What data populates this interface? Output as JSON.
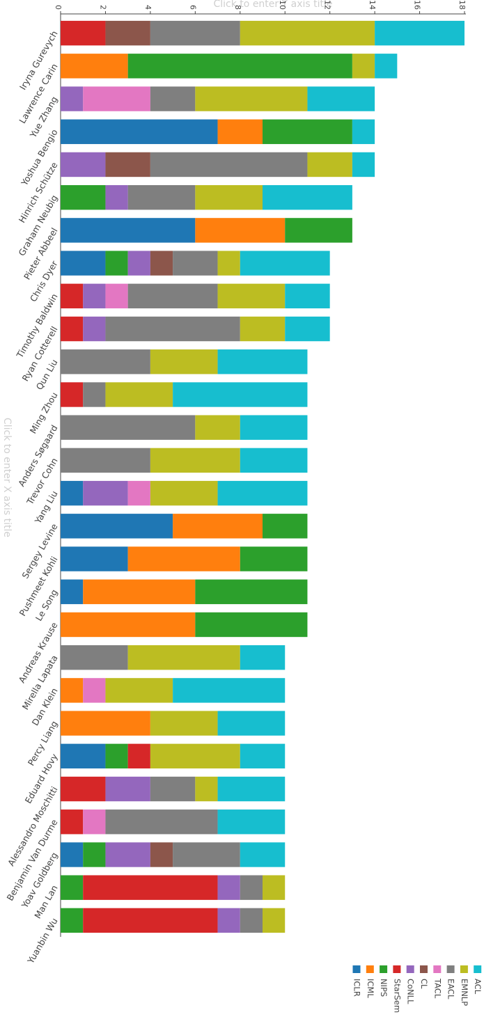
{
  "chart_data": {
    "type": "bar",
    "orientation": "horizontal",
    "stacked": true,
    "title": "",
    "xaxis_title_placeholder": "Click to enter Y axis title",
    "yaxis_title_placeholder": "Click to enter X axis title",
    "xlim": [
      0,
      18
    ],
    "x_ticks": [
      0,
      2,
      4,
      6,
      8,
      10,
      12,
      14,
      16,
      18
    ],
    "x_tick_labels": [
      "0",
      "2",
      "4",
      "6",
      "8",
      "10",
      "12",
      "14",
      "16",
      "18"
    ],
    "grid": false,
    "legend_position": "bottom-right",
    "categories": [
      "Iryna Gurevych",
      "Lawrence Carin",
      "Yue Zhang",
      "Yoshua Bengio",
      "Hinrich Schütze",
      "Graham Neubig",
      "Pieter Abbeel",
      "Chris Dyer",
      "Timothy Baldwin",
      "Ryan Cotterell",
      "Qun Liu",
      "Ming Zhou",
      "Anders Søgaard",
      "Trevor Cohn",
      "Yang Liu",
      "Sergey Levine",
      "Pushmeet Kohli",
      "Le Song",
      "Andreas Krause",
      "Mirella Lapata",
      "Dan Klein",
      "Percy Liang",
      "Eduard Hovy",
      "Alessandro Moschitti",
      "Benjamin Van Durme",
      "Yoav Goldberg",
      "Man Lan",
      "Yuanbin Wu"
    ],
    "series": [
      {
        "name": "ICLR",
        "color": "#1f77b4",
        "values": [
          0,
          0,
          0,
          7,
          0,
          0,
          6,
          2,
          0,
          0,
          0,
          0,
          0,
          0,
          1,
          5,
          3,
          1,
          0,
          0,
          0,
          0,
          2,
          0,
          0,
          1,
          0,
          0
        ]
      },
      {
        "name": "ICML",
        "color": "#ff7f0e",
        "values": [
          0,
          3,
          0,
          2,
          0,
          0,
          4,
          0,
          0,
          0,
          0,
          0,
          0,
          0,
          0,
          4,
          5,
          5,
          6,
          0,
          1,
          4,
          0,
          0,
          0,
          0,
          0,
          0
        ]
      },
      {
        "name": "NIPS",
        "color": "#2ca02c",
        "values": [
          0,
          10,
          0,
          4,
          0,
          2,
          3,
          1,
          0,
          0,
          0,
          0,
          0,
          0,
          0,
          2,
          3,
          5,
          5,
          0,
          0,
          0,
          1,
          0,
          0,
          1,
          1,
          1
        ]
      },
      {
        "name": "StarSem",
        "color": "#d62728",
        "values": [
          2,
          0,
          0,
          0,
          0,
          0,
          0,
          0,
          1,
          1,
          0,
          1,
          0,
          0,
          0,
          0,
          0,
          0,
          0,
          0,
          0,
          0,
          1,
          2,
          1,
          0,
          6,
          6
        ]
      },
      {
        "name": "CoNLL",
        "color": "#9467bd",
        "values": [
          0,
          0,
          1,
          0,
          2,
          1,
          0,
          1,
          1,
          1,
          0,
          0,
          0,
          0,
          2,
          0,
          0,
          0,
          0,
          0,
          0,
          0,
          0,
          2,
          0,
          2,
          1,
          1
        ]
      },
      {
        "name": "CL",
        "color": "#8c564b",
        "values": [
          2,
          0,
          0,
          0,
          2,
          0,
          0,
          1,
          0,
          0,
          0,
          0,
          0,
          0,
          0,
          0,
          0,
          0,
          0,
          0,
          0,
          0,
          0,
          0,
          0,
          1,
          0,
          0
        ]
      },
      {
        "name": "TACL",
        "color": "#e377c2",
        "values": [
          0,
          0,
          3,
          0,
          0,
          0,
          0,
          0,
          1,
          0,
          0,
          0,
          0,
          0,
          1,
          0,
          0,
          0,
          0,
          0,
          1,
          0,
          0,
          0,
          1,
          0,
          0,
          0
        ]
      },
      {
        "name": "EACL",
        "color": "#7f7f7f",
        "values": [
          4,
          0,
          2,
          0,
          7,
          3,
          0,
          2,
          4,
          6,
          4,
          1,
          6,
          4,
          0,
          0,
          0,
          0,
          0,
          3,
          0,
          0,
          0,
          2,
          5,
          3,
          1,
          1
        ]
      },
      {
        "name": "EMNLP",
        "color": "#bcbd22",
        "values": [
          6,
          1,
          5,
          0,
          2,
          3,
          0,
          1,
          3,
          2,
          3,
          3,
          2,
          4,
          3,
          0,
          0,
          0,
          0,
          5,
          3,
          3,
          4,
          1,
          0,
          0,
          1,
          1
        ]
      },
      {
        "name": "ACL",
        "color": "#17becf",
        "values": [
          4,
          1,
          3,
          1,
          1,
          4,
          0,
          4,
          2,
          2,
          4,
          6,
          3,
          3,
          4,
          0,
          0,
          0,
          0,
          2,
          5,
          3,
          2,
          3,
          3,
          2,
          0,
          0
        ]
      }
    ]
  }
}
